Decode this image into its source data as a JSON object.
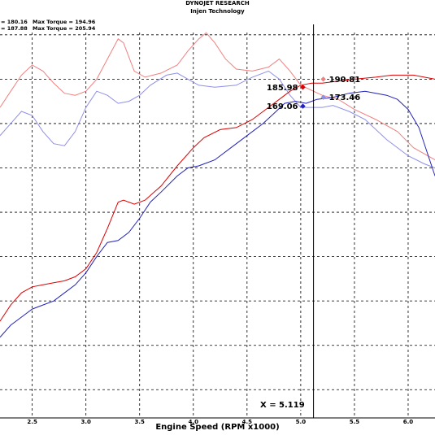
{
  "header": {
    "title": "DYNOJET RESEARCH",
    "subtitle": "Injen Technology",
    "stats": [
      {
        "text": "= 180.16",
        "series": "hp-blue"
      },
      {
        "text": "Max Torque = 194.96",
        "series": "tq-blue"
      },
      {
        "text": "= 187.88",
        "series": "hp-red"
      },
      {
        "text": "Max Torque = 205.94",
        "series": "tq-red"
      }
    ]
  },
  "cursor": {
    "readout": "X = 5.119"
  },
  "chart_data": {
    "type": "line",
    "title": "",
    "xlabel": "Engine Speed (RPM x1000)",
    "ylabel": "",
    "xlim": [
      2.2,
      6.25
    ],
    "ylim": [
      0,
      100
    ],
    "x_ticks": [
      2.5,
      3.0,
      3.5,
      4.0,
      4.5,
      5.0,
      5.5,
      6.0
    ],
    "x_tick_labels": [
      "2.5",
      "3.0",
      "3.5",
      "4.0",
      "4.5",
      "5.0",
      "5.5",
      "6.0"
    ],
    "y_grid": [
      7,
      18,
      29,
      40,
      51,
      62,
      73,
      84,
      95
    ],
    "grid": true,
    "cursor_x": 5.119,
    "series": [
      {
        "id": "tq-red",
        "color": "#f08080",
        "points": [
          [
            2.2,
            77
          ],
          [
            2.3,
            81
          ],
          [
            2.4,
            85
          ],
          [
            2.5,
            87.5
          ],
          [
            2.6,
            86
          ],
          [
            2.7,
            83
          ],
          [
            2.8,
            80.5
          ],
          [
            2.9,
            80
          ],
          [
            3.0,
            81
          ],
          [
            3.1,
            84
          ],
          [
            3.2,
            89
          ],
          [
            3.3,
            94
          ],
          [
            3.35,
            93
          ],
          [
            3.45,
            86
          ],
          [
            3.55,
            84.5
          ],
          [
            3.7,
            85.5
          ],
          [
            3.85,
            87.5
          ],
          [
            3.95,
            91
          ],
          [
            4.05,
            94
          ],
          [
            4.12,
            95.5
          ],
          [
            4.2,
            93
          ],
          [
            4.3,
            89
          ],
          [
            4.4,
            86.5
          ],
          [
            4.55,
            86
          ],
          [
            4.7,
            87
          ],
          [
            4.8,
            89
          ],
          [
            4.9,
            86
          ],
          [
            5.0,
            82.5
          ],
          [
            5.2,
            80
          ],
          [
            5.35,
            79
          ],
          [
            5.5,
            76.5
          ],
          [
            5.7,
            74
          ],
          [
            5.9,
            71
          ],
          [
            6.05,
            67
          ],
          [
            6.25,
            64
          ]
        ]
      },
      {
        "id": "tq-blue",
        "color": "#8f8fe8",
        "points": [
          [
            2.2,
            70
          ],
          [
            2.3,
            73
          ],
          [
            2.4,
            76
          ],
          [
            2.5,
            75
          ],
          [
            2.6,
            71
          ],
          [
            2.7,
            68
          ],
          [
            2.8,
            67.5
          ],
          [
            2.9,
            71
          ],
          [
            3.0,
            77
          ],
          [
            3.1,
            81
          ],
          [
            3.2,
            80
          ],
          [
            3.3,
            78
          ],
          [
            3.4,
            78.5
          ],
          [
            3.5,
            80
          ],
          [
            3.6,
            82.5
          ],
          [
            3.75,
            85
          ],
          [
            3.85,
            85.5
          ],
          [
            3.95,
            84
          ],
          [
            4.05,
            82.5
          ],
          [
            4.2,
            82
          ],
          [
            4.4,
            82.5
          ],
          [
            4.55,
            84.5
          ],
          [
            4.7,
            86
          ],
          [
            4.8,
            84
          ],
          [
            4.9,
            80
          ],
          [
            5.0,
            77
          ],
          [
            5.2,
            77
          ],
          [
            5.3,
            77.5
          ],
          [
            5.45,
            76
          ],
          [
            5.6,
            74
          ],
          [
            5.8,
            69
          ],
          [
            6.0,
            65
          ],
          [
            6.15,
            63
          ],
          [
            6.25,
            62
          ]
        ]
      },
      {
        "id": "hp-red",
        "color": "#dd0000",
        "points": [
          [
            2.2,
            24
          ],
          [
            2.3,
            28
          ],
          [
            2.4,
            31
          ],
          [
            2.5,
            32.5
          ],
          [
            2.6,
            33
          ],
          [
            2.7,
            33.5
          ],
          [
            2.8,
            34
          ],
          [
            2.9,
            35
          ],
          [
            3.0,
            37
          ],
          [
            3.1,
            41
          ],
          [
            3.2,
            47
          ],
          [
            3.3,
            53.5
          ],
          [
            3.35,
            54
          ],
          [
            3.45,
            53
          ],
          [
            3.55,
            54
          ],
          [
            3.7,
            57.5
          ],
          [
            3.85,
            62.5
          ],
          [
            4.0,
            67
          ],
          [
            4.1,
            69.5
          ],
          [
            4.25,
            71.5
          ],
          [
            4.4,
            72
          ],
          [
            4.55,
            74
          ],
          [
            4.7,
            77
          ],
          [
            4.8,
            79
          ],
          [
            4.9,
            81
          ],
          [
            5.0,
            82.5
          ],
          [
            5.1,
            83
          ],
          [
            5.2,
            83
          ],
          [
            5.35,
            83.5
          ],
          [
            5.5,
            84
          ],
          [
            5.7,
            84.5
          ],
          [
            5.85,
            85
          ],
          [
            5.95,
            85
          ],
          [
            6.05,
            85
          ],
          [
            6.15,
            84.5
          ],
          [
            6.25,
            84
          ]
        ]
      },
      {
        "id": "hp-blue",
        "color": "#2222bb",
        "points": [
          [
            2.2,
            20
          ],
          [
            2.3,
            23
          ],
          [
            2.4,
            25
          ],
          [
            2.5,
            27
          ],
          [
            2.6,
            28
          ],
          [
            2.7,
            29
          ],
          [
            2.8,
            31
          ],
          [
            2.9,
            33
          ],
          [
            3.0,
            36
          ],
          [
            3.1,
            40
          ],
          [
            3.2,
            43.5
          ],
          [
            3.3,
            44
          ],
          [
            3.4,
            46
          ],
          [
            3.5,
            49.5
          ],
          [
            3.6,
            53.5
          ],
          [
            3.7,
            56
          ],
          [
            3.85,
            60
          ],
          [
            3.95,
            62
          ],
          [
            4.05,
            62.5
          ],
          [
            4.2,
            64
          ],
          [
            4.35,
            67
          ],
          [
            4.5,
            70
          ],
          [
            4.65,
            73
          ],
          [
            4.75,
            75.5
          ],
          [
            4.85,
            78
          ],
          [
            4.95,
            78.5
          ],
          [
            5.05,
            78
          ],
          [
            5.15,
            79
          ],
          [
            5.3,
            79.5
          ],
          [
            5.45,
            80.5
          ],
          [
            5.6,
            81
          ],
          [
            5.7,
            80.5
          ],
          [
            5.8,
            80
          ],
          [
            5.9,
            79
          ],
          [
            6.0,
            76.5
          ],
          [
            6.1,
            72
          ],
          [
            6.2,
            64
          ],
          [
            6.25,
            60
          ]
        ]
      }
    ],
    "markers": [
      {
        "x": 5.02,
        "y": 82.0,
        "label": "185.98",
        "color": "#dd0000",
        "series": "hp-red"
      },
      {
        "x": 5.21,
        "y": 84.0,
        "label": "190.81",
        "color": "#f08080",
        "series": "tq-red"
      },
      {
        "x": 5.02,
        "y": 77.3,
        "label": "169.06",
        "color": "#2222bb",
        "series": "hp-blue"
      },
      {
        "x": 5.21,
        "y": 79.5,
        "label": "173.46",
        "color": "#8f8fe8",
        "series": "tq-blue"
      }
    ]
  }
}
